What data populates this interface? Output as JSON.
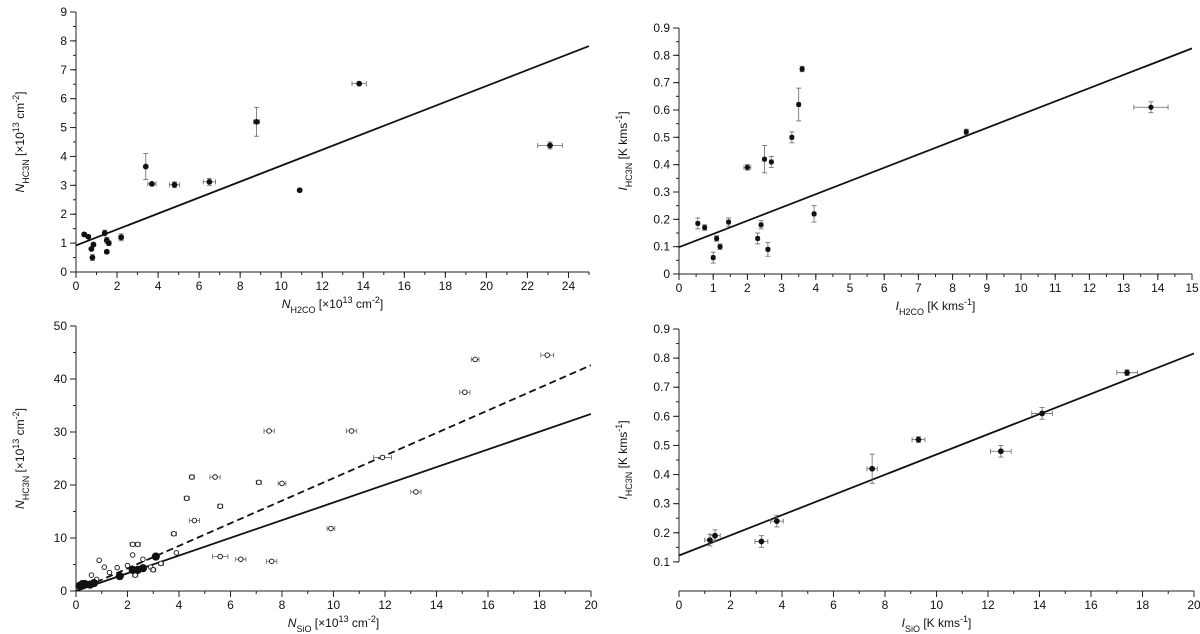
{
  "figure": {
    "colors": {
      "ink": "#111111",
      "errbar": "#666666",
      "marker_filled": "#111111",
      "marker_open": "#ffffff"
    }
  },
  "chart_data": [
    {
      "id": "panel-a",
      "type": "scatter",
      "title": "",
      "xlabel": {
        "sym": "N",
        "sub": "H2CO",
        "unit": " [×10",
        "exp": "13",
        "unit2": " cm",
        "exp2": "-2",
        "tail": "]"
      },
      "ylabel": {
        "sym": "N",
        "sub": "HC3N",
        "unit": " [×10",
        "exp": "13",
        "unit2": " cm",
        "exp2": "-2",
        "tail": "]"
      },
      "xlim": [
        0,
        25
      ],
      "ylim": [
        0,
        9
      ],
      "xticks": [
        0,
        2,
        4,
        6,
        8,
        10,
        12,
        14,
        16,
        18,
        20,
        22,
        24
      ],
      "yticks": [
        0,
        1,
        2,
        3,
        4,
        5,
        6,
        7,
        8,
        9
      ],
      "xminor": 1,
      "yminor": 0.5,
      "lines": [
        {
          "style": "solid",
          "intercept": 0.92,
          "slope": 0.276
        }
      ],
      "series": [
        {
          "name": "sources",
          "marker": "filled",
          "size": 2.6,
          "points": [
            {
              "x": 0.4,
              "y": 1.3,
              "ey": 0.07
            },
            {
              "x": 0.6,
              "y": 1.22,
              "ey": 0.05
            },
            {
              "x": 0.75,
              "y": 0.8,
              "ey": 0.05
            },
            {
              "x": 0.85,
              "y": 0.95,
              "ey": 0.06
            },
            {
              "x": 0.8,
              "y": 0.5,
              "ey": 0.1
            },
            {
              "x": 1.4,
              "y": 1.35,
              "ey": 0.1
            },
            {
              "x": 1.5,
              "y": 1.1,
              "ey": 0.1
            },
            {
              "x": 1.6,
              "y": 1.0,
              "ey": 0.08
            },
            {
              "x": 1.5,
              "y": 0.7,
              "ey": 0.06
            },
            {
              "x": 2.2,
              "y": 1.2,
              "ey": 0.12,
              "ex": 0.1
            },
            {
              "x": 3.4,
              "y": 3.65,
              "ey": 0.45
            },
            {
              "x": 3.7,
              "y": 3.05,
              "ey": 0.05,
              "ex": 0.2
            },
            {
              "x": 4.8,
              "y": 3.02,
              "ey": 0.1,
              "ex": 0.25
            },
            {
              "x": 6.5,
              "y": 3.12,
              "ey": 0.12,
              "ex": 0.3
            },
            {
              "x": 8.8,
              "y": 5.2,
              "ey": 0.5,
              "ex": 0.15
            },
            {
              "x": 10.9,
              "y": 2.83,
              "ey": 0.05
            },
            {
              "x": 13.8,
              "y": 6.52,
              "ey": 0.05,
              "ex": 0.35
            },
            {
              "x": 23.1,
              "y": 4.38,
              "ey": 0.12,
              "ex": 0.6
            }
          ]
        }
      ]
    },
    {
      "id": "panel-b",
      "type": "scatter",
      "title": "",
      "xlabel": {
        "sym": "I",
        "sub": "H2CO",
        "unit": " [K kms",
        "exp": "-1",
        "unit2": "",
        "exp2": "",
        "tail": "]"
      },
      "ylabel": {
        "sym": "I",
        "sub": "HC3N",
        "unit": " [K kms",
        "exp": "-1",
        "unit2": "",
        "exp2": "",
        "tail": "]"
      },
      "xlim": [
        0,
        15
      ],
      "ylim": [
        0,
        0.9
      ],
      "xticks": [
        0,
        1,
        2,
        3,
        4,
        5,
        6,
        7,
        8,
        9,
        10,
        11,
        12,
        13,
        14,
        15
      ],
      "yticks": [
        0,
        0.1,
        0.2,
        0.3,
        0.4,
        0.5,
        0.6,
        0.7,
        0.8,
        0.9
      ],
      "xminor": 0.5,
      "yminor": 0.05,
      "lines": [
        {
          "style": "solid",
          "intercept": 0.098,
          "slope": 0.0485
        }
      ],
      "series": [
        {
          "name": "sources",
          "marker": "filled",
          "size": 2.3,
          "points": [
            {
              "x": 0.55,
              "y": 0.185,
              "ey": 0.02,
              "ex": 0.05
            },
            {
              "x": 0.75,
              "y": 0.17,
              "ey": 0.01,
              "ex": 0.05
            },
            {
              "x": 1.0,
              "y": 0.06,
              "ey": 0.02,
              "ex": 0.05
            },
            {
              "x": 1.1,
              "y": 0.13,
              "ey": 0.01,
              "ex": 0.05
            },
            {
              "x": 1.2,
              "y": 0.1,
              "ey": 0.01,
              "ex": 0.05
            },
            {
              "x": 1.45,
              "y": 0.19,
              "ey": 0.015,
              "ex": 0.05
            },
            {
              "x": 2.0,
              "y": 0.39,
              "ey": 0.01,
              "ex": 0.1
            },
            {
              "x": 2.3,
              "y": 0.13,
              "ey": 0.02,
              "ex": 0.05
            },
            {
              "x": 2.4,
              "y": 0.18,
              "ey": 0.015,
              "ex": 0.05
            },
            {
              "x": 2.5,
              "y": 0.42,
              "ey": 0.05,
              "ex": 0.05
            },
            {
              "x": 2.6,
              "y": 0.09,
              "ey": 0.025,
              "ex": 0.05
            },
            {
              "x": 2.7,
              "y": 0.41,
              "ey": 0.02,
              "ex": 0.05
            },
            {
              "x": 3.3,
              "y": 0.5,
              "ey": 0.02,
              "ex": 0.05
            },
            {
              "x": 3.5,
              "y": 0.62,
              "ey": 0.06,
              "ex": 0.05
            },
            {
              "x": 3.6,
              "y": 0.75,
              "ey": 0.01,
              "ex": 0.05
            },
            {
              "x": 3.95,
              "y": 0.22,
              "ey": 0.03,
              "ex": 0.05
            },
            {
              "x": 8.4,
              "y": 0.52,
              "ey": 0.01,
              "ex": 0.05
            },
            {
              "x": 13.8,
              "y": 0.61,
              "ey": 0.02,
              "ex": 0.5
            }
          ]
        }
      ]
    },
    {
      "id": "panel-c",
      "type": "scatter",
      "title": "",
      "xlabel": {
        "sym": "N",
        "sub": "SiO",
        "unit": " [×10",
        "exp": "13",
        "unit2": " cm",
        "exp2": "-2",
        "tail": "]"
      },
      "ylabel": {
        "sym": "N",
        "sub": "HC3N",
        "unit": " [×10",
        "exp": "13",
        "unit2": " cm",
        "exp2": "-2",
        "tail": "]"
      },
      "xlim": [
        0,
        20
      ],
      "ylim": [
        0,
        50
      ],
      "xticks": [
        0,
        2,
        4,
        6,
        8,
        10,
        12,
        14,
        16,
        18,
        20
      ],
      "yticks": [
        0,
        10,
        20,
        30,
        40,
        50
      ],
      "xminor": 1,
      "yminor": 5,
      "lines": [
        {
          "style": "solid",
          "intercept": 0.0,
          "slope": 1.67
        },
        {
          "style": "dashed",
          "intercept": 0.0,
          "slope": 2.13
        }
      ],
      "series": [
        {
          "name": "open",
          "marker": "open",
          "size": 2.3,
          "points": [
            {
              "x": 0.9,
              "y": 5.8
            },
            {
              "x": 1.1,
              "y": 4.5
            },
            {
              "x": 0.6,
              "y": 3.0
            },
            {
              "x": 0.8,
              "y": 2.2
            },
            {
              "x": 1.3,
              "y": 3.5
            },
            {
              "x": 1.6,
              "y": 4.4
            },
            {
              "x": 2.0,
              "y": 4.8
            },
            {
              "x": 2.6,
              "y": 6.0
            },
            {
              "x": 2.2,
              "y": 6.8
            },
            {
              "x": 2.2,
              "y": 8.8,
              "ex": 0.1
            },
            {
              "x": 2.4,
              "y": 8.8,
              "ex": 0.1
            },
            {
              "x": 2.3,
              "y": 3.0,
              "ex": 0.1
            },
            {
              "x": 2.9,
              "y": 4.5
            },
            {
              "x": 3.0,
              "y": 4.0,
              "ex": 0.1
            },
            {
              "x": 3.3,
              "y": 5.2,
              "ex": 0.1
            },
            {
              "x": 3.8,
              "y": 10.8,
              "ex": 0.1
            },
            {
              "x": 3.9,
              "y": 7.2
            },
            {
              "x": 4.3,
              "y": 17.5,
              "ex": 0.1
            },
            {
              "x": 4.5,
              "y": 21.5,
              "ex": 0.1
            },
            {
              "x": 4.6,
              "y": 13.3,
              "ex": 0.2
            },
            {
              "x": 5.4,
              "y": 21.5,
              "ex": 0.2
            },
            {
              "x": 5.6,
              "y": 16.0,
              "ex": 0.1
            },
            {
              "x": 5.6,
              "y": 6.5,
              "ex": 0.3
            },
            {
              "x": 6.4,
              "y": 6.0,
              "ex": 0.2
            },
            {
              "x": 7.1,
              "y": 20.5,
              "ex": 0.1
            },
            {
              "x": 7.5,
              "y": 30.2,
              "ex": 0.2
            },
            {
              "x": 7.6,
              "y": 5.6,
              "ex": 0.2
            },
            {
              "x": 8.0,
              "y": 20.3,
              "ex": 0.15
            },
            {
              "x": 9.9,
              "y": 11.8,
              "ex": 0.15
            },
            {
              "x": 10.7,
              "y": 30.2,
              "ex": 0.2
            },
            {
              "x": 11.9,
              "y": 25.2,
              "ex": 0.35
            },
            {
              "x": 13.2,
              "y": 18.7,
              "ex": 0.2
            },
            {
              "x": 15.1,
              "y": 37.5,
              "ex": 0.2
            },
            {
              "x": 15.5,
              "y": 43.7,
              "ex": 0.15
            },
            {
              "x": 18.3,
              "y": 44.5,
              "ex": 0.25
            }
          ]
        },
        {
          "name": "filled",
          "marker": "filled",
          "size": 3.8,
          "points": [
            {
              "x": 0.15,
              "y": 1.0
            },
            {
              "x": 0.25,
              "y": 1.3
            },
            {
              "x": 0.35,
              "y": 1.3
            },
            {
              "x": 0.55,
              "y": 1.2
            },
            {
              "x": 0.7,
              "y": 1.5
            },
            {
              "x": 1.7,
              "y": 2.8
            },
            {
              "x": 2.2,
              "y": 4.0
            },
            {
              "x": 2.4,
              "y": 4.0
            },
            {
              "x": 2.6,
              "y": 4.3
            },
            {
              "x": 3.1,
              "y": 6.5
            }
          ]
        }
      ]
    },
    {
      "id": "panel-d",
      "type": "scatter",
      "title": "",
      "xlabel": {
        "sym": "I",
        "sub": "SiO",
        "unit": " [K kms",
        "exp": "-1",
        "unit2": "",
        "exp2": "",
        "tail": "]"
      },
      "ylabel": {
        "sym": "I",
        "sub": "HC3N",
        "unit": " [K kms",
        "exp": "-1",
        "unit2": "",
        "exp2": "",
        "tail": "]"
      },
      "xlim": [
        0,
        20
      ],
      "ylim": [
        0,
        0.9
      ],
      "yaxis_start": 0.1,
      "xticks": [
        0,
        2,
        4,
        6,
        8,
        10,
        12,
        14,
        16,
        18,
        20
      ],
      "yticks": [
        0.1,
        0.2,
        0.3,
        0.4,
        0.5,
        0.6,
        0.7,
        0.8,
        0.9
      ],
      "xminor": 1,
      "yminor": 0.05,
      "lines": [
        {
          "style": "solid",
          "intercept": 0.122,
          "slope": 0.0347
        }
      ],
      "series": [
        {
          "name": "sources",
          "marker": "filled",
          "size": 2.6,
          "points": [
            {
              "x": 1.2,
              "y": 0.175,
              "ey": 0.02,
              "ex": 0.2
            },
            {
              "x": 1.4,
              "y": 0.19,
              "ey": 0.02,
              "ex": 0.2
            },
            {
              "x": 3.2,
              "y": 0.17,
              "ey": 0.02,
              "ex": 0.25
            },
            {
              "x": 3.8,
              "y": 0.24,
              "ey": 0.02,
              "ex": 0.25
            },
            {
              "x": 7.5,
              "y": 0.42,
              "ey": 0.05,
              "ex": 0.2
            },
            {
              "x": 9.3,
              "y": 0.52,
              "ey": 0.01,
              "ex": 0.25
            },
            {
              "x": 12.5,
              "y": 0.48,
              "ey": 0.02,
              "ex": 0.4
            },
            {
              "x": 14.1,
              "y": 0.61,
              "ey": 0.02,
              "ex": 0.4
            },
            {
              "x": 17.4,
              "y": 0.75,
              "ey": 0.01,
              "ex": 0.4
            }
          ]
        }
      ]
    }
  ]
}
